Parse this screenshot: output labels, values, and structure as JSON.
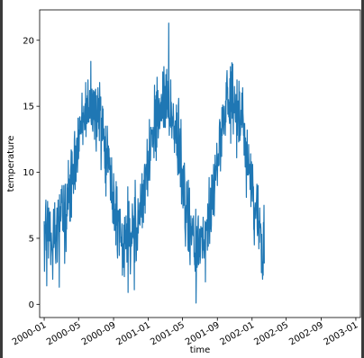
{
  "chart_data": {
    "type": "line",
    "title": "",
    "xlabel": "time",
    "ylabel": "temperature",
    "x_tick_labels": [
      "2000-01",
      "2000-05",
      "2000-09",
      "2001-01",
      "2001-05",
      "2001-09",
      "2002-01",
      "2002-05",
      "2002-09",
      "2003-01"
    ],
    "y_tick_labels": [
      "0",
      "5",
      "10",
      "15",
      "20"
    ],
    "y_ticks": [
      0,
      5,
      10,
      15,
      20
    ],
    "xlim": [
      "1999-12-16",
      "2003-01-17"
    ],
    "ylim": [
      -1.0,
      22.3
    ],
    "grid": false,
    "series_color": "#1f77b4",
    "series": [
      {
        "x_start": "2000-01-01",
        "x_step_days": 1,
        "values": [
          6.3,
          2.5,
          4.1,
          6.0,
          5.4,
          7.4,
          7.9,
          4.1,
          5.5,
          1.4,
          5.8,
          6.7,
          7.8,
          4.8,
          6.8,
          3.5,
          7.3,
          6.5,
          6.1,
          4.8,
          6.9,
          7.0,
          5.0,
          3.0,
          5.4,
          5.4,
          4.7,
          4.2,
          4.0,
          3.6,
          1.9,
          4.3,
          6.0,
          7.2,
          4.3,
          4.8,
          4.8,
          7.7,
          4.6,
          4.9,
          3.5,
          3.1,
          6.0,
          4.8,
          6.3,
          7.3,
          3.2,
          4.5,
          5.8,
          7.9,
          6.3,
          6.5,
          6.6,
          1.3,
          8.3,
          5.5,
          7.4,
          6.8,
          6.3,
          6.7,
          8.7,
          7.7,
          8.1,
          9.0,
          8.0,
          5.6,
          6.0,
          6.5,
          5.5,
          9.0,
          6.9,
          7.7,
          3.1,
          5.5,
          9.1,
          5.5,
          6.8,
          4.0,
          6.5,
          5.7,
          9.1,
          6.7,
          8.8,
          8.6,
          7.2,
          10.9,
          7.7,
          9.5,
          9.1,
          8.6,
          6.3,
          9.8,
          6.3,
          10.1,
          10.6,
          11.7,
          6.6,
          11.6,
          11.5,
          9.9,
          9.1,
          10.1,
          10.6,
          8.4,
          9.7,
          9.1,
          12.5,
          13.1,
          9.3,
          8.7,
          12.0,
          10.2,
          9.3,
          10.8,
          12.4,
          12.6,
          11.8,
          10.0,
          11.0,
          14.1,
          11.0,
          11.1,
          13.2,
          11.6,
          14.1,
          14.2,
          12.9,
          13.9,
          13.3,
          13.3,
          12.9,
          14.2,
          14.2,
          16.0,
          13.0,
          14.3,
          12.1,
          14.5,
          13.8,
          15.0,
          13.8,
          13.8,
          13.2,
          13.7,
          15.2,
          13.3,
          16.8,
          12.7,
          14.1,
          14.3,
          15.6,
          13.7,
          15.8,
          15.2,
          17.0,
          13.8,
          14.9,
          13.8,
          14.8,
          14.5,
          16.2,
          14.1,
          15.5,
          14.6,
          18.4,
          13.9,
          13.6,
          15.0,
          16.3,
          15.9,
          13.3,
          13.1,
          14.4,
          16.2,
          14.0,
          14.3,
          16.1,
          12.5,
          15.3,
          13.9,
          16.2,
          16.3,
          12.4,
          11.6,
          15.8,
          13.6,
          12.7,
          14.6,
          13.8,
          16.4,
          14.9,
          15.6,
          13.3,
          14.8,
          12.4,
          16.8,
          15.3,
          14.7,
          15.4,
          15.7,
          10.2,
          12.3,
          14.1,
          13.9,
          12.4,
          15.0,
          12.6,
          14.8,
          12.5,
          13.2,
          13.3,
          11.6,
          12.7,
          10.3,
          11.9,
          9.2,
          13.5,
          8.2,
          11.8,
          9.8,
          10.8,
          11.3,
          13.5,
          12.3,
          10.0,
          10.0,
          12.0,
          10.6,
          11.8,
          10.3,
          10.2,
          11.1,
          10.1,
          7.9,
          10.5,
          8.8,
          7.7,
          11.1,
          9.0,
          7.2,
          8.5,
          6.2,
          6.8,
          6.1,
          9.9,
          9.0,
          8.5,
          5.6,
          7.2,
          6.3,
          5.6,
          7.6,
          4.5,
          9.3,
          6.0,
          6.9,
          8.9,
          4.1,
          3.5,
          6.5,
          7.1,
          6.3,
          7.1,
          6.5,
          3.7,
          7.2,
          6.1,
          7.2,
          6.1,
          4.7,
          5.1,
          4.4,
          4.6,
          5.1,
          6.1,
          2.2,
          4.5,
          3.7,
          4.6,
          2.8,
          6.0,
          3.9,
          2.1,
          6.6,
          4.7,
          4.6,
          5.6,
          4.2,
          6.7,
          4.3,
          6.1,
          3.2,
          4.7,
          4.3,
          8.9,
          0.9,
          6.3,
          5.9,
          7.8,
          4.4,
          5.2,
          6.5,
          4.3,
          2.3,
          3.4,
          5.4,
          4.5,
          4.4,
          5.5,
          4.6,
          7.6,
          6.9,
          5.1,
          6.7,
          5.0,
          6.5,
          4.7,
          1.1,
          8.1,
          3.2,
          9.4,
          7.4,
          6.2,
          5.3,
          3.3,
          5.2,
          5.8,
          5.6,
          4.1,
          5.8,
          8.0,
          5.4,
          7.1,
          6.2,
          6.1,
          7.5,
          7.7,
          6.0,
          6.9,
          9.1,
          7.0,
          7.2,
          6.6,
          7.7,
          9.9,
          5.8,
          9.1,
          8.8,
          6.5,
          6.2,
          9.4,
          7.5,
          10.0,
          10.6,
          9.4,
          6.9,
          10.2,
          10.3,
          10.6,
          10.5,
          9.7,
          8.7,
          12.5,
          9.6,
          8.2,
          11.6,
          9.7,
          9.4,
          10.9,
          9.7,
          14.0,
          9.4,
          10.6,
          11.7,
          10.9,
          13.4,
          13.4,
          13.0,
          12.9,
          13.2,
          12.0,
          11.9,
          12.5,
          13.4,
          12.2,
          12.7,
          11.1,
          13.1,
          16.6,
          12.8,
          15.5,
          11.6,
          11.8,
          15.8,
          10.9,
          16.1,
          11.9,
          17.2,
          13.5,
          14.3,
          16.2,
          12.6,
          13.2,
          15.3,
          15.4,
          15.6,
          13.3,
          13.7,
          14.8,
          15.1,
          15.3,
          13.9,
          15.9,
          13.9,
          14.8,
          15.7,
          14.1,
          17.6,
          14.7,
          13.9,
          13.4,
          18.0,
          16.7,
          14.2,
          13.4,
          16.5,
          13.4,
          15.7,
          17.4,
          14.8,
          14.1,
          17.8,
          14.8,
          16.9,
          15.2,
          14.2,
          15.7,
          14.1,
          21.3,
          14.3,
          12.8,
          14.1,
          13.5,
          13.6,
          14.6,
          17.0,
          13.4,
          15.3,
          14.2,
          12.6,
          13.8,
          13.5,
          14.2,
          14.3,
          15.2,
          14.2,
          12.5,
          13.5,
          11.5,
          13.2,
          13.3,
          13.9,
          12.9,
          12.2,
          13.3,
          15.1,
          11.3,
          14.5,
          11.2,
          11.0,
          9.8,
          10.9,
          15.0,
          15.6,
          9.9,
          11.1,
          10.0,
          12.5,
          13.3,
          8.9,
          9.9,
          14.0,
          11.3,
          7.6,
          10.3,
          8.6,
          10.2,
          8.5,
          7.3,
          10.4,
          10.5,
          7.5,
          8.4,
          10.7,
          9.5,
          5.8,
          5.3,
          4.4,
          7.2,
          7.5,
          6.2,
          9.1,
          9.3,
          7.9,
          7.4,
          5.5,
          4.1,
          9.4,
          4.0,
          4.7,
          5.9,
          8.8,
          3.8,
          3.0,
          6.1,
          5.2,
          6.7,
          5.8,
          4.5,
          5.1,
          5.9,
          5.5,
          6.5,
          5.3,
          5.2,
          6.7,
          5.7,
          3.6,
          3.9,
          3.0,
          3.1,
          2.5,
          4.3,
          7.2,
          0.1,
          2.2,
          5.9,
          5.2,
          2.8,
          3.1,
          5.0,
          6.5,
          6.7,
          3.0,
          4.0,
          3.6,
          4.7,
          5.7,
          3.1,
          3.4,
          4.6,
          5.9,
          5.5,
          5.1,
          5.3,
          5.8,
          3.5,
          5.8,
          4.3,
          6.6,
          4.1,
          4.2,
          3.5,
          4.4,
          4.9,
          4.1,
          6.3,
          1.7,
          6.2,
          5.9,
          6.2,
          5.6,
          6.4,
          6.0,
          4.1,
          7.6,
          6.3,
          4.4,
          7.0,
          7.2,
          9.6,
          6.2,
          4.6,
          7.6,
          5.7,
          8.8,
          6.2,
          5.5,
          6.0,
          9.8,
          7.2,
          9.8,
          8.6,
          9.4,
          6.8,
          8.8,
          10.6,
          10.1,
          6.7,
          8.3,
          9.0,
          11.3,
          10.1,
          9.4,
          10.0,
          10.5,
          10.2,
          12.2,
          10.9,
          9.0,
          10.7,
          10.5,
          11.4,
          10.5,
          10.5,
          10.6,
          13.4,
          14.0,
          12.5,
          13.8,
          10.1,
          11.7,
          13.3,
          13.2,
          11.2,
          14.9,
          12.8,
          14.2,
          15.1,
          14.8,
          13.6,
          13.2,
          12.9,
          15.0,
          13.6,
          13.6,
          14.1,
          12.8,
          15.4,
          13.8,
          16.8,
          15.5,
          17.1,
          17.7,
          16.5,
          16.4,
          14.4,
          15.2,
          15.5,
          14.2,
          15.3,
          14.0,
          13.7,
          17.1,
          15.5,
          18.0,
          12.2,
          17.6,
          15.0,
          14.6,
          18.3,
          14.1,
          14.6,
          18.2,
          14.7,
          12.9,
          15.2,
          14.9,
          14.5,
          16.5,
          15.3,
          15.2,
          14.1,
          13.8,
          15.9,
          14.5,
          14.7,
          11.1,
          17.0,
          12.8,
          14.7,
          14.2,
          15.4,
          15.1,
          12.3,
          16.9,
          14.7,
          16.1,
          12.4,
          13.0,
          12.8,
          13.4,
          14.7,
          13.6,
          14.4,
          16.0,
          13.4,
          14.2,
          16.4,
          14.5,
          14.0,
          12.8,
          13.7,
          11.3,
          12.6,
          13.7,
          11.8,
          10.4,
          12.6,
          11.0,
          10.9,
          8.1,
          12.3,
          10.0,
          13.2,
          9.8,
          10.3,
          10.4,
          9.8,
          12.1,
          10.3,
          9.9,
          10.3,
          10.6,
          8.7,
          9.1,
          11.4,
          7.4,
          10.7,
          10.8,
          8.6,
          8.5,
          7.8,
          10.6,
          9.2,
          8.8,
          8.9,
          5.7,
          5.6,
          4.5,
          7.2,
          7.4,
          7.7,
          7.4,
          6.5,
          7.3,
          7.5,
          8.1,
          9.1,
          5.9,
          5.2,
          7.1,
          9.0,
          5.4,
          6.2,
          4.2,
          6.3,
          4.7,
          7.3,
          6.0,
          5.8,
          6.1,
          5.8,
          4.9,
          2.4,
          5.3,
          3.4,
          2.6,
          1.9,
          3.2,
          2.2,
          6.2,
          5.2,
          7.5,
          3.1
        ]
      }
    ]
  }
}
